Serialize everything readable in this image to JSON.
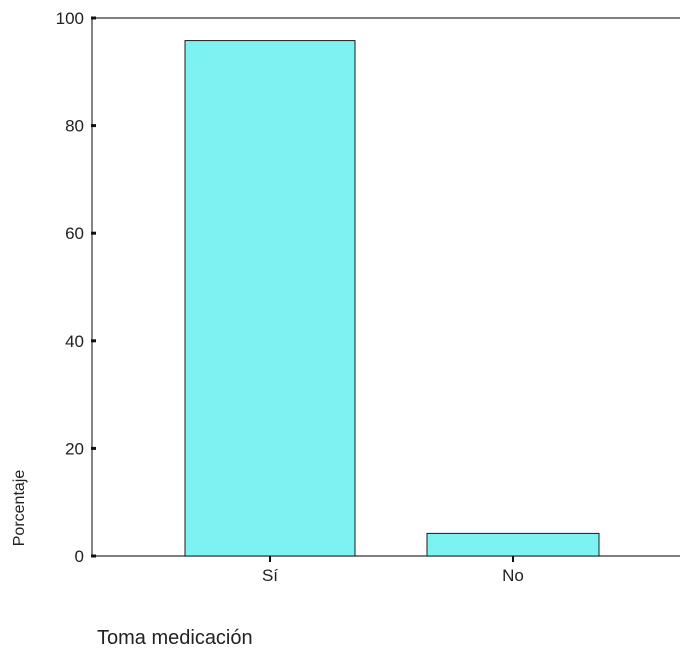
{
  "chart_data": {
    "type": "bar",
    "categories": [
      "Sí",
      "No"
    ],
    "values": [
      95.8,
      4.2
    ],
    "title": "",
    "xlabel": "Toma medicación",
    "ylabel": "Porcentaje",
    "ylim": [
      0,
      100
    ],
    "yticks": [
      0,
      20,
      40,
      60,
      80,
      100
    ],
    "grid": false,
    "legend": "none",
    "colors": {
      "bar_fill": "#7DF2F2",
      "bar_stroke": "#1a1a1a",
      "axis": "#333333"
    }
  }
}
